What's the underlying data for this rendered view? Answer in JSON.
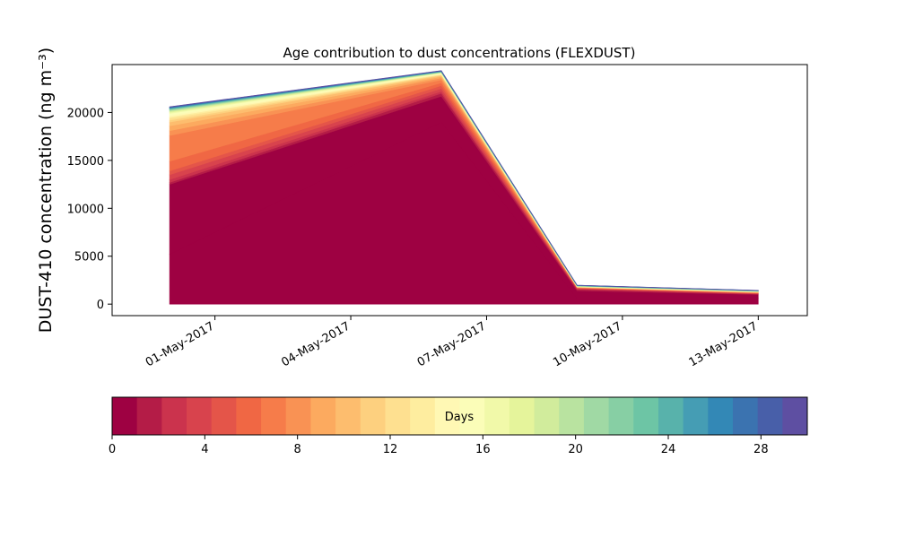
{
  "chart_data": {
    "type": "area",
    "title": "Age contribution to dust concentrations (FLEXDUST)",
    "ylabel": "DUST-410 concentration (ng m⁻³)",
    "xlabel": "",
    "x": [
      "2017-04-30",
      "2017-05-06",
      "2017-05-09",
      "2017-05-13"
    ],
    "xticks": [
      "01-May-2017",
      "04-May-2017",
      "07-May-2017",
      "10-May-2017",
      "13-May-2017"
    ],
    "xlim": [
      "2017-04-28T17:30",
      "2017-05-14T02:00"
    ],
    "ylim": [
      -1200,
      25000
    ],
    "yticks": [
      0,
      5000,
      10000,
      15000,
      20000
    ],
    "grid": false,
    "colormap": "Spectral",
    "series": [
      {
        "values": [
          5200,
          19000,
          600,
          600
        ]
      },
      {
        "values": [
          7300,
          2700,
          800,
          400
        ]
      },
      {
        "values": [
          200,
          300,
          150,
          50
        ]
      },
      {
        "values": [
          300,
          200,
          50,
          30
        ]
      },
      {
        "values": [
          500,
          300,
          50,
          30
        ]
      },
      {
        "values": [
          400,
          300,
          30,
          30
        ]
      },
      {
        "values": [
          1000,
          300,
          30,
          30
        ]
      },
      {
        "values": [
          2700,
          300,
          20,
          20
        ]
      },
      {
        "values": [
          500,
          200,
          20,
          20
        ]
      },
      {
        "values": [
          500,
          150,
          20,
          20
        ]
      },
      {
        "values": [
          400,
          100,
          20,
          20
        ]
      },
      {
        "values": [
          200,
          60,
          10,
          10
        ]
      },
      {
        "values": [
          200,
          50,
          10,
          10
        ]
      },
      {
        "values": [
          150,
          40,
          10,
          10
        ]
      },
      {
        "values": [
          150,
          40,
          10,
          10
        ]
      },
      {
        "values": [
          100,
          30,
          10,
          10
        ]
      },
      {
        "values": [
          100,
          30,
          10,
          10
        ]
      },
      {
        "values": [
          100,
          30,
          10,
          10
        ]
      },
      {
        "values": [
          80,
          25,
          10,
          10
        ]
      },
      {
        "values": [
          80,
          20,
          10,
          10
        ]
      },
      {
        "values": [
          60,
          20,
          10,
          10
        ]
      },
      {
        "values": [
          60,
          20,
          10,
          10
        ]
      },
      {
        "values": [
          50,
          20,
          10,
          10
        ]
      },
      {
        "values": [
          50,
          20,
          10,
          10
        ]
      },
      {
        "values": [
          40,
          20,
          10,
          10
        ]
      },
      {
        "values": [
          40,
          20,
          10,
          10
        ]
      },
      {
        "values": [
          40,
          20,
          10,
          10
        ]
      },
      {
        "values": [
          40,
          20,
          10,
          10
        ]
      },
      {
        "values": [
          30,
          20,
          10,
          10
        ]
      },
      {
        "values": [
          30,
          20,
          10,
          10
        ]
      }
    ],
    "colorbar": {
      "label": "Days",
      "min": 0,
      "max": 30,
      "ticks": [
        0,
        4,
        8,
        12,
        16,
        20,
        24,
        28
      ],
      "colors": [
        "#9e0142",
        "#b41c47",
        "#cb334d",
        "#d8434d",
        "#e45549",
        "#f06744",
        "#f67c4a",
        "#f99254",
        "#fcaa5f",
        "#fdbd6e",
        "#fdd07f",
        "#fee090",
        "#feed9f",
        "#fff8b4",
        "#fbfdb8",
        "#f1f9a9",
        "#e5f49b",
        "#d1ec9c",
        "#b9e3a0",
        "#a0d9a4",
        "#87cfa4",
        "#6dc5a5",
        "#58b2ab",
        "#459db4",
        "#3388b6",
        "#3b73b0",
        "#485fa9",
        "#5e4fa2"
      ]
    }
  }
}
